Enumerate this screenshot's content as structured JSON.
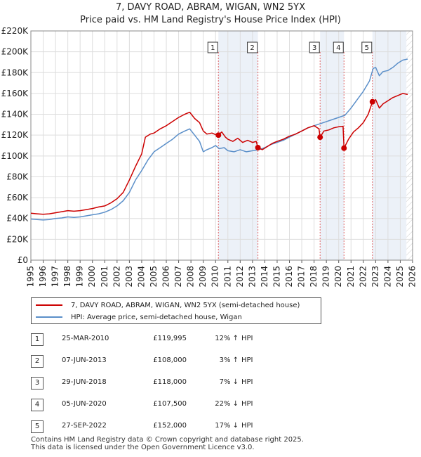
{
  "chart_data": {
    "type": "line",
    "title": "7, DAVY ROAD, ABRAM, WIGAN, WN2 5YX",
    "subtitle": "Price paid vs. HM Land Registry's House Price Index (HPI)",
    "xlim": [
      1995,
      2026
    ],
    "ylim": [
      0,
      220000
    ],
    "x_ticks": [
      "1995",
      "1996",
      "1997",
      "1998",
      "1999",
      "2000",
      "2001",
      "2002",
      "2003",
      "2004",
      "2005",
      "2006",
      "2007",
      "2008",
      "2009",
      "2010",
      "2011",
      "2012",
      "2013",
      "2014",
      "2015",
      "2016",
      "2017",
      "2018",
      "2019",
      "2020",
      "2021",
      "2022",
      "2023",
      "2024",
      "2025",
      "2026"
    ],
    "y_ticks": [
      {
        "value": 0,
        "label": "£0"
      },
      {
        "value": 20000,
        "label": "£20K"
      },
      {
        "value": 40000,
        "label": "£40K"
      },
      {
        "value": 60000,
        "label": "£60K"
      },
      {
        "value": 80000,
        "label": "£80K"
      },
      {
        "value": 100000,
        "label": "£100K"
      },
      {
        "value": 120000,
        "label": "£120K"
      },
      {
        "value": 140000,
        "label": "£140K"
      },
      {
        "value": 160000,
        "label": "£160K"
      },
      {
        "value": 180000,
        "label": "£180K"
      },
      {
        "value": 200000,
        "label": "£200K"
      },
      {
        "value": 220000,
        "label": "£220K"
      }
    ],
    "grid": true,
    "series": [
      {
        "name": "7, DAVY ROAD, ABRAM, WIGAN, WN2 5YX (semi-detached house)",
        "color": "#cc0000",
        "points": [
          [
            1995.0,
            45000
          ],
          [
            1995.5,
            44500
          ],
          [
            1996.0,
            44000
          ],
          [
            1996.5,
            44500
          ],
          [
            1997.0,
            45500
          ],
          [
            1997.5,
            46500
          ],
          [
            1998.0,
            47500
          ],
          [
            1998.5,
            47000
          ],
          [
            1999.0,
            47500
          ],
          [
            1999.5,
            48500
          ],
          [
            2000.0,
            49500
          ],
          [
            2000.5,
            51000
          ],
          [
            2001.0,
            52000
          ],
          [
            2001.5,
            55000
          ],
          [
            2002.0,
            59000
          ],
          [
            2002.5,
            65000
          ],
          [
            2003.0,
            77000
          ],
          [
            2003.5,
            90000
          ],
          [
            2004.0,
            102000
          ],
          [
            2004.3,
            118000
          ],
          [
            2004.7,
            121000
          ],
          [
            2005.0,
            122000
          ],
          [
            2005.5,
            126000
          ],
          [
            2006.0,
            129000
          ],
          [
            2006.5,
            133000
          ],
          [
            2007.0,
            137000
          ],
          [
            2007.5,
            140000
          ],
          [
            2007.9,
            142000
          ],
          [
            2008.3,
            136000
          ],
          [
            2008.7,
            132000
          ],
          [
            2009.0,
            124000
          ],
          [
            2009.3,
            121000
          ],
          [
            2009.7,
            122000
          ],
          [
            2010.0,
            120500
          ],
          [
            2010.23,
            119995
          ],
          [
            2010.5,
            123000
          ],
          [
            2010.8,
            118000
          ],
          [
            2011.0,
            116000
          ],
          [
            2011.4,
            114000
          ],
          [
            2011.8,
            117000
          ],
          [
            2012.2,
            113000
          ],
          [
            2012.6,
            115000
          ],
          [
            2013.0,
            113000
          ],
          [
            2013.3,
            114000
          ],
          [
            2013.44,
            108000
          ],
          [
            2013.8,
            106000
          ],
          [
            2014.2,
            109000
          ],
          [
            2014.6,
            112000
          ],
          [
            2015.0,
            114000
          ],
          [
            2015.5,
            116000
          ],
          [
            2016.0,
            119000
          ],
          [
            2016.5,
            121000
          ],
          [
            2017.0,
            124000
          ],
          [
            2017.5,
            127000
          ],
          [
            2018.0,
            129000
          ],
          [
            2018.4,
            126000
          ],
          [
            2018.49,
            118000
          ],
          [
            2018.8,
            124000
          ],
          [
            2019.2,
            125000
          ],
          [
            2019.6,
            127000
          ],
          [
            2020.0,
            128000
          ],
          [
            2020.35,
            128500
          ],
          [
            2020.43,
            107500
          ],
          [
            2020.8,
            116000
          ],
          [
            2021.2,
            123000
          ],
          [
            2021.6,
            127000
          ],
          [
            2022.0,
            132000
          ],
          [
            2022.4,
            140000
          ],
          [
            2022.74,
            152000
          ],
          [
            2023.0,
            154000
          ],
          [
            2023.3,
            146000
          ],
          [
            2023.6,
            150000
          ],
          [
            2024.0,
            153000
          ],
          [
            2024.4,
            156000
          ],
          [
            2024.8,
            158000
          ],
          [
            2025.2,
            160000
          ],
          [
            2025.6,
            159000
          ]
        ]
      },
      {
        "name": "HPI: Average price, semi-detached house, Wigan",
        "color": "#5b8fc9",
        "points": [
          [
            1995.0,
            39500
          ],
          [
            1995.5,
            39000
          ],
          [
            1996.0,
            38500
          ],
          [
            1996.5,
            39000
          ],
          [
            1997.0,
            40000
          ],
          [
            1997.5,
            40500
          ],
          [
            1998.0,
            41500
          ],
          [
            1998.5,
            41000
          ],
          [
            1999.0,
            41500
          ],
          [
            1999.5,
            42500
          ],
          [
            2000.0,
            43500
          ],
          [
            2000.5,
            44500
          ],
          [
            2001.0,
            46000
          ],
          [
            2001.5,
            48500
          ],
          [
            2002.0,
            52000
          ],
          [
            2002.5,
            57000
          ],
          [
            2003.0,
            65000
          ],
          [
            2003.5,
            77000
          ],
          [
            2004.0,
            86000
          ],
          [
            2004.5,
            96000
          ],
          [
            2005.0,
            104000
          ],
          [
            2005.5,
            108000
          ],
          [
            2006.0,
            112000
          ],
          [
            2006.5,
            116000
          ],
          [
            2007.0,
            121000
          ],
          [
            2007.5,
            124000
          ],
          [
            2007.9,
            126000
          ],
          [
            2008.3,
            120000
          ],
          [
            2008.7,
            114000
          ],
          [
            2009.0,
            104000
          ],
          [
            2009.3,
            106000
          ],
          [
            2009.7,
            108000
          ],
          [
            2010.0,
            110000
          ],
          [
            2010.3,
            107000
          ],
          [
            2010.7,
            108000
          ],
          [
            2011.0,
            105000
          ],
          [
            2011.5,
            104000
          ],
          [
            2012.0,
            106000
          ],
          [
            2012.5,
            104000
          ],
          [
            2013.0,
            105000
          ],
          [
            2013.5,
            106000
          ],
          [
            2014.0,
            108000
          ],
          [
            2014.5,
            111000
          ],
          [
            2015.0,
            113000
          ],
          [
            2015.5,
            115000
          ],
          [
            2016.0,
            118000
          ],
          [
            2016.5,
            121000
          ],
          [
            2017.0,
            124000
          ],
          [
            2017.5,
            127000
          ],
          [
            2018.0,
            129000
          ],
          [
            2018.5,
            131000
          ],
          [
            2019.0,
            133000
          ],
          [
            2019.5,
            135000
          ],
          [
            2020.0,
            137000
          ],
          [
            2020.5,
            139000
          ],
          [
            2021.0,
            146000
          ],
          [
            2021.5,
            154000
          ],
          [
            2022.0,
            162000
          ],
          [
            2022.5,
            172000
          ],
          [
            2022.8,
            184000
          ],
          [
            2023.0,
            185000
          ],
          [
            2023.3,
            177000
          ],
          [
            2023.6,
            181000
          ],
          [
            2024.0,
            182000
          ],
          [
            2024.4,
            185000
          ],
          [
            2024.8,
            189000
          ],
          [
            2025.2,
            192000
          ],
          [
            2025.6,
            193000
          ]
        ]
      }
    ],
    "annotations": [
      {
        "label": "1",
        "x": 2010.23,
        "y": 119995
      },
      {
        "label": "2",
        "x": 2013.44,
        "y": 108000
      },
      {
        "label": "3",
        "x": 2018.49,
        "y": 118000
      },
      {
        "label": "4",
        "x": 2020.43,
        "y": 107500
      },
      {
        "label": "5",
        "x": 2022.74,
        "y": 152000
      }
    ]
  },
  "legend": {
    "property_label": "7, DAVY ROAD, ABRAM, WIGAN, WN2 5YX (semi-detached house)",
    "hpi_label": "HPI: Average price, semi-detached house, Wigan"
  },
  "sales": [
    {
      "num": "1",
      "date": "25-MAR-2010",
      "price": "£119,995",
      "hpi": "12% ↑",
      "hpi_label": "HPI"
    },
    {
      "num": "2",
      "date": "07-JUN-2013",
      "price": "£108,000",
      "hpi": "3% ↑",
      "hpi_label": "HPI"
    },
    {
      "num": "3",
      "date": "29-JUN-2018",
      "price": "£118,000",
      "hpi": "7% ↓",
      "hpi_label": "HPI"
    },
    {
      "num": "4",
      "date": "05-JUN-2020",
      "price": "£107,500",
      "hpi": "22% ↓",
      "hpi_label": "HPI"
    },
    {
      "num": "5",
      "date": "27-SEP-2022",
      "price": "£152,000",
      "hpi": "17% ↓",
      "hpi_label": "HPI"
    }
  ],
  "footer": {
    "line1": "Contains HM Land Registry data © Crown copyright and database right 2025.",
    "line2": "This data is licensed under the Open Government Licence v3.0."
  }
}
